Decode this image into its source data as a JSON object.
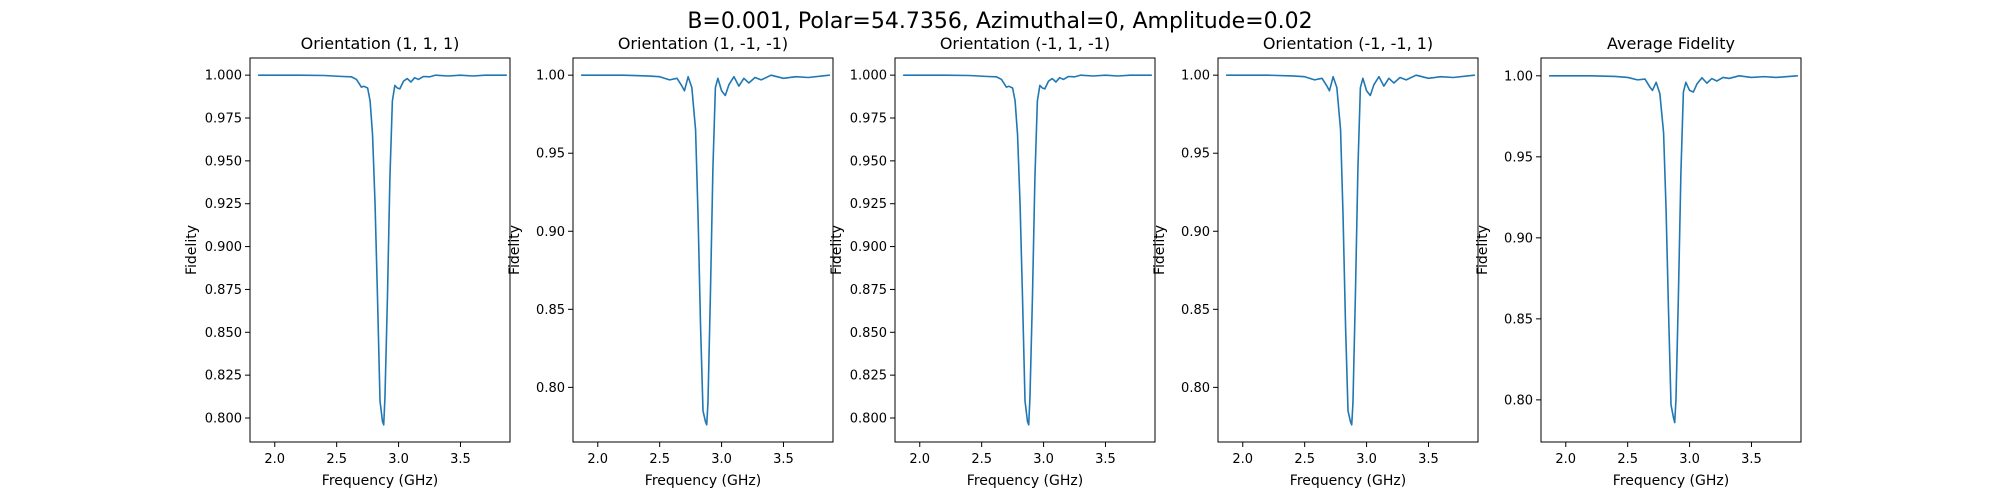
{
  "figure": {
    "suptitle": "B=0.001, Polar=54.7356, Azimuthal=0, Amplitude=0.02"
  },
  "colors": {
    "line": "#1f77b4",
    "axes": "#000000",
    "background": "#ffffff"
  },
  "chart_data": [
    {
      "type": "line",
      "title": "Orientation (1, 1, 1)",
      "xlabel": "Frequency (GHz)",
      "ylabel": "Fidelity",
      "xlim": [
        1.8,
        3.9
      ],
      "ylim": [
        0.786,
        1.01
      ],
      "xticks": [
        2.0,
        2.5,
        3.0,
        3.5
      ],
      "xtick_labels": [
        "2.0",
        "2.5",
        "3.0",
        "3.5"
      ],
      "yticks": [
        0.8,
        0.825,
        0.85,
        0.875,
        0.9,
        0.925,
        0.95,
        0.975,
        1.0
      ],
      "ytick_labels": [
        "0.800",
        "0.825",
        "0.850",
        "0.875",
        "0.900",
        "0.925",
        "0.950",
        "0.975",
        "1.000"
      ],
      "grid": false,
      "series": [
        {
          "x": [
            1.87,
            2.2,
            2.4,
            2.55,
            2.62,
            2.66,
            2.7,
            2.72,
            2.75,
            2.77,
            2.79,
            2.81,
            2.83,
            2.85,
            2.87,
            2.875,
            2.88,
            2.89,
            2.91,
            2.93,
            2.95,
            2.97,
            2.99,
            3.01,
            3.04,
            3.07,
            3.1,
            3.13,
            3.16,
            3.2,
            3.25,
            3.3,
            3.4,
            3.5,
            3.6,
            3.7,
            3.87
          ],
          "y": [
            1.0,
            1.0,
            0.9998,
            0.9992,
            0.999,
            0.9975,
            0.993,
            0.9935,
            0.9925,
            0.985,
            0.965,
            0.925,
            0.87,
            0.81,
            0.798,
            0.797,
            0.796,
            0.812,
            0.87,
            0.94,
            0.985,
            0.994,
            0.9925,
            0.992,
            0.9965,
            0.998,
            0.996,
            0.9985,
            0.9975,
            0.9992,
            0.999,
            1.0,
            0.9995,
            1.0,
            0.9995,
            1.0,
            1.0
          ]
        }
      ]
    },
    {
      "type": "line",
      "title": "Orientation (1, -1, -1)",
      "xlabel": "Frequency (GHz)",
      "ylabel": "Fidelity",
      "xlim": [
        1.8,
        3.9
      ],
      "ylim": [
        0.765,
        1.011
      ],
      "xticks": [
        2.0,
        2.5,
        3.0,
        3.5
      ],
      "xtick_labels": [
        "2.0",
        "2.5",
        "3.0",
        "3.5"
      ],
      "yticks": [
        0.8,
        0.85,
        0.9,
        0.95,
        1.0
      ],
      "ytick_labels": [
        "0.80",
        "0.85",
        "0.90",
        "0.95",
        "1.00"
      ],
      "grid": false,
      "series": [
        {
          "x": [
            1.87,
            2.2,
            2.4,
            2.5,
            2.58,
            2.64,
            2.68,
            2.7,
            2.73,
            2.76,
            2.79,
            2.81,
            2.83,
            2.85,
            2.87,
            2.88,
            2.89,
            2.91,
            2.93,
            2.95,
            2.97,
            3.0,
            3.03,
            3.06,
            3.1,
            3.14,
            3.18,
            3.22,
            3.27,
            3.32,
            3.4,
            3.5,
            3.6,
            3.7,
            3.87
          ],
          "y": [
            1.0,
            1.0,
            0.9995,
            0.999,
            0.997,
            0.998,
            0.993,
            0.99,
            0.999,
            0.992,
            0.965,
            0.91,
            0.84,
            0.785,
            0.778,
            0.776,
            0.79,
            0.86,
            0.94,
            0.992,
            0.998,
            0.99,
            0.987,
            0.994,
            0.999,
            0.993,
            0.998,
            0.995,
            0.9985,
            0.997,
            1.0,
            0.998,
            0.999,
            0.9985,
            1.0
          ]
        }
      ]
    },
    {
      "type": "line",
      "title": "Orientation (-1, 1, -1)",
      "xlabel": "Frequency (GHz)",
      "ylabel": "Fidelity",
      "xlim": [
        1.8,
        3.9
      ],
      "ylim": [
        0.786,
        1.01
      ],
      "xticks": [
        2.0,
        2.5,
        3.0,
        3.5
      ],
      "xtick_labels": [
        "2.0",
        "2.5",
        "3.0",
        "3.5"
      ],
      "yticks": [
        0.8,
        0.825,
        0.85,
        0.875,
        0.9,
        0.925,
        0.95,
        0.975,
        1.0
      ],
      "ytick_labels": [
        "0.800",
        "0.825",
        "0.850",
        "0.875",
        "0.900",
        "0.925",
        "0.950",
        "0.975",
        "1.000"
      ],
      "grid": false,
      "series": [
        {
          "x": [
            1.87,
            2.2,
            2.4,
            2.55,
            2.62,
            2.66,
            2.7,
            2.72,
            2.75,
            2.77,
            2.79,
            2.81,
            2.83,
            2.85,
            2.87,
            2.875,
            2.88,
            2.89,
            2.91,
            2.93,
            2.95,
            2.97,
            2.99,
            3.01,
            3.04,
            3.07,
            3.1,
            3.13,
            3.16,
            3.2,
            3.25,
            3.3,
            3.4,
            3.5,
            3.6,
            3.7,
            3.87
          ],
          "y": [
            1.0,
            1.0,
            0.9998,
            0.9992,
            0.999,
            0.9975,
            0.993,
            0.9935,
            0.9925,
            0.985,
            0.965,
            0.925,
            0.87,
            0.81,
            0.798,
            0.797,
            0.796,
            0.812,
            0.87,
            0.94,
            0.985,
            0.994,
            0.9925,
            0.992,
            0.9965,
            0.998,
            0.996,
            0.9985,
            0.9975,
            0.9992,
            0.999,
            1.0,
            0.9995,
            1.0,
            0.9995,
            1.0,
            1.0
          ]
        }
      ]
    },
    {
      "type": "line",
      "title": "Orientation (-1, -1, 1)",
      "xlabel": "Frequency (GHz)",
      "ylabel": "Fidelity",
      "xlim": [
        1.8,
        3.9
      ],
      "ylim": [
        0.765,
        1.011
      ],
      "xticks": [
        2.0,
        2.5,
        3.0,
        3.5
      ],
      "xtick_labels": [
        "2.0",
        "2.5",
        "3.0",
        "3.5"
      ],
      "yticks": [
        0.8,
        0.85,
        0.9,
        0.95,
        1.0
      ],
      "ytick_labels": [
        "0.80",
        "0.85",
        "0.90",
        "0.95",
        "1.00"
      ],
      "grid": false,
      "series": [
        {
          "x": [
            1.87,
            2.2,
            2.4,
            2.5,
            2.58,
            2.64,
            2.68,
            2.7,
            2.73,
            2.76,
            2.79,
            2.81,
            2.83,
            2.85,
            2.87,
            2.88,
            2.89,
            2.91,
            2.93,
            2.95,
            2.97,
            3.0,
            3.03,
            3.06,
            3.1,
            3.14,
            3.18,
            3.22,
            3.27,
            3.32,
            3.4,
            3.5,
            3.6,
            3.7,
            3.87
          ],
          "y": [
            1.0,
            1.0,
            0.9995,
            0.999,
            0.997,
            0.998,
            0.993,
            0.99,
            0.999,
            0.992,
            0.965,
            0.91,
            0.84,
            0.785,
            0.778,
            0.776,
            0.79,
            0.86,
            0.94,
            0.992,
            0.998,
            0.99,
            0.987,
            0.994,
            0.999,
            0.993,
            0.998,
            0.995,
            0.9985,
            0.997,
            1.0,
            0.998,
            0.999,
            0.9985,
            1.0
          ]
        }
      ]
    },
    {
      "type": "line",
      "title": "Average Fidelity",
      "xlabel": "Frequency (GHz)",
      "ylabel": "Fidelity",
      "xlim": [
        1.8,
        3.9
      ],
      "ylim": [
        0.774,
        1.011
      ],
      "xticks": [
        2.0,
        2.5,
        3.0,
        3.5
      ],
      "xtick_labels": [
        "2.0",
        "2.5",
        "3.0",
        "3.5"
      ],
      "yticks": [
        0.8,
        0.85,
        0.9,
        0.95,
        1.0
      ],
      "ytick_labels": [
        "0.80",
        "0.85",
        "0.90",
        "0.95",
        "1.00"
      ],
      "grid": false,
      "series": [
        {
          "x": [
            1.87,
            2.2,
            2.4,
            2.5,
            2.58,
            2.64,
            2.68,
            2.7,
            2.73,
            2.76,
            2.79,
            2.81,
            2.83,
            2.85,
            2.87,
            2.88,
            2.89,
            2.91,
            2.93,
            2.95,
            2.97,
            3.0,
            3.03,
            3.06,
            3.1,
            3.14,
            3.18,
            3.22,
            3.27,
            3.32,
            3.4,
            3.5,
            3.6,
            3.7,
            3.87
          ],
          "y": [
            1.0,
            1.0,
            0.9996,
            0.999,
            0.9975,
            0.998,
            0.993,
            0.991,
            0.996,
            0.989,
            0.965,
            0.918,
            0.855,
            0.797,
            0.789,
            0.786,
            0.8,
            0.865,
            0.94,
            0.99,
            0.996,
            0.991,
            0.99,
            0.995,
            0.9988,
            0.9955,
            0.9983,
            0.9968,
            0.999,
            0.9984,
            1.0,
            0.999,
            0.9995,
            0.999,
            1.0
          ]
        }
      ]
    }
  ]
}
